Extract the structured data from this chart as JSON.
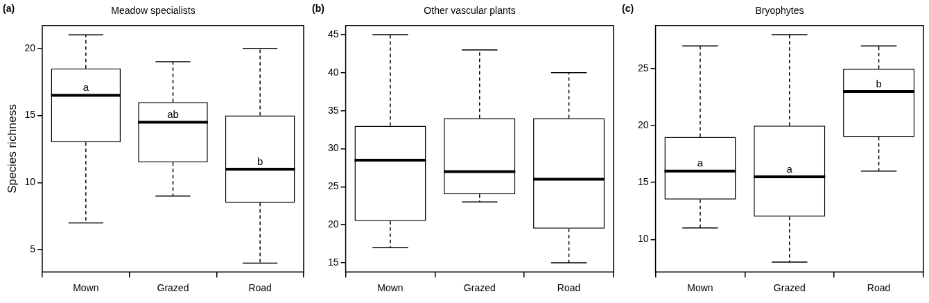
{
  "chart_data": [
    {
      "type": "box",
      "title": "Meadow specialists",
      "ylabel": "Species richness",
      "categories": [
        "Mown",
        "Grazed",
        "Road"
      ],
      "ylim": [
        3.35,
        21.7
      ],
      "yticks": [
        5,
        10,
        15,
        20
      ],
      "grid": false,
      "series": [
        {
          "color": "#000000",
          "boxes": [
            {
              "low": 7,
              "q1": 13,
              "median": 16.5,
              "q3": 18.5,
              "high": 21
            },
            {
              "low": 9,
              "q1": 11.5,
              "median": 14.5,
              "q3": 16,
              "high": 19
            },
            {
              "low": 4,
              "q1": 8.5,
              "median": 11,
              "q3": 15,
              "high": 20
            }
          ]
        }
      ],
      "annotations": [
        "(a)",
        {
          "text": "a",
          "x": "Mown",
          "y": 16.5
        },
        {
          "text": "ab",
          "x": "Grazed",
          "y": 14.5
        },
        {
          "text": "b",
          "x": "Road",
          "y": 11
        }
      ]
    },
    {
      "type": "box",
      "title": "Other vascular plants",
      "categories": [
        "Mown",
        "Grazed",
        "Road"
      ],
      "ylim": [
        13.8,
        46.2
      ],
      "yticks": [
        15,
        20,
        25,
        30,
        35,
        40,
        45
      ],
      "grid": false,
      "series": [
        {
          "color": "#000000",
          "boxes": [
            {
              "low": 17,
              "q1": 20.5,
              "median": 28.5,
              "q3": 33,
              "high": 45
            },
            {
              "low": 23,
              "q1": 24,
              "median": 27,
              "q3": 34,
              "high": 43
            },
            {
              "low": 15,
              "q1": 19.5,
              "median": 26,
              "q3": 34,
              "high": 40
            }
          ]
        }
      ],
      "annotations": [
        "(b)"
      ]
    },
    {
      "type": "box",
      "title": "Bryophytes",
      "categories": [
        "Mown",
        "Grazed",
        "Road"
      ],
      "ylim": [
        7.14,
        28.8
      ],
      "yticks": [
        10,
        15,
        20,
        25
      ],
      "grid": false,
      "series": [
        {
          "color": "#000000",
          "boxes": [
            {
              "low": 11,
              "q1": 13.5,
              "median": 16,
              "q3": 19,
              "high": 27
            },
            {
              "low": 8,
              "q1": 12,
              "median": 15.5,
              "q3": 20,
              "high": 28
            },
            {
              "low": 16,
              "q1": 19,
              "median": 23,
              "q3": 25,
              "high": 27
            }
          ]
        }
      ],
      "annotations": [
        "(c)",
        {
          "text": "a",
          "x": "Mown",
          "y": 16
        },
        {
          "text": "a",
          "x": "Grazed",
          "y": 15.5
        },
        {
          "text": "b",
          "x": "Road",
          "y": 23
        }
      ]
    }
  ]
}
